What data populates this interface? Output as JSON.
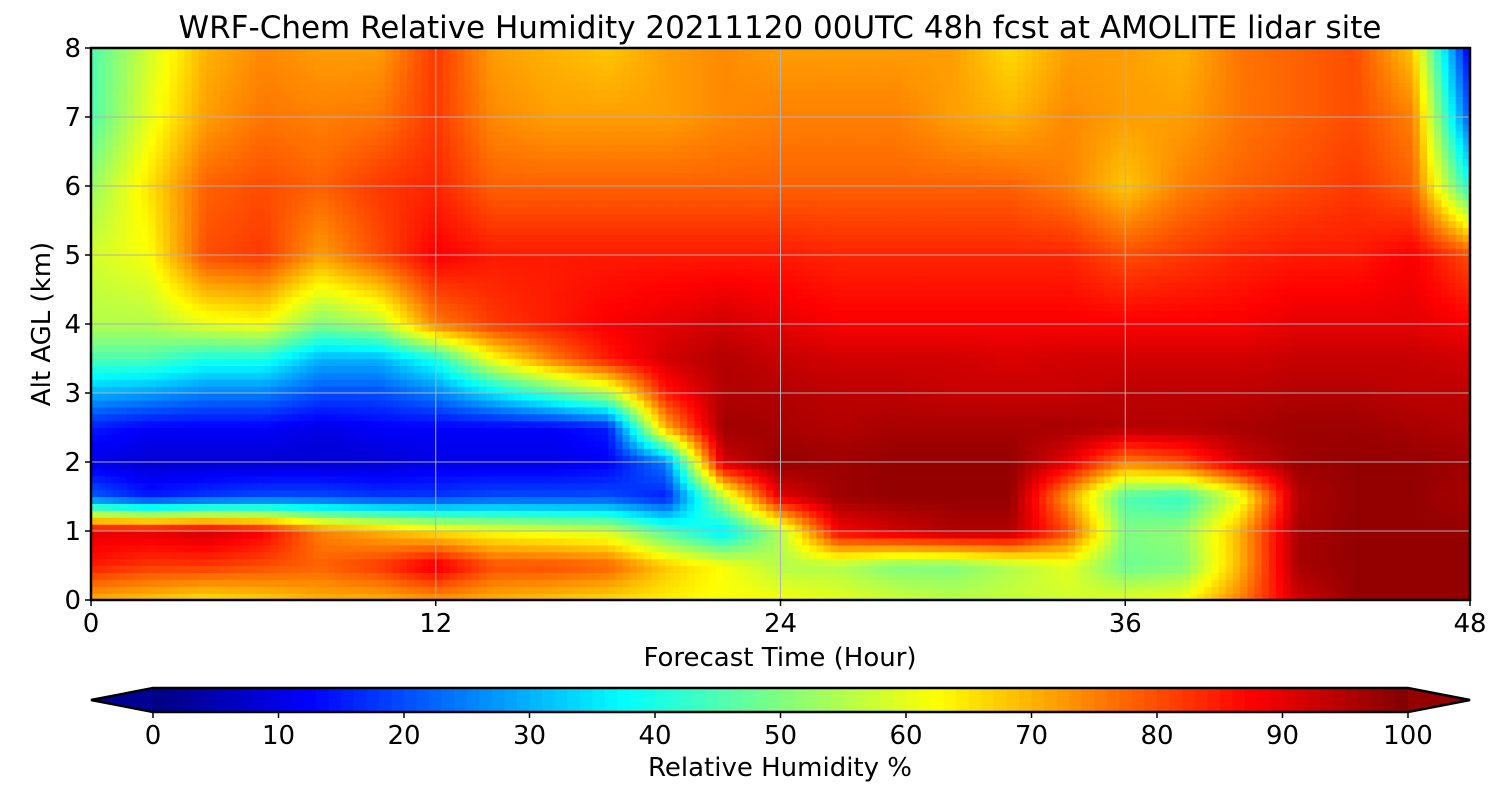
{
  "chart_data": {
    "type": "heatmap",
    "title": "WRF-Chem Relative Humidity 20211120 00UTC 48h fcst at AMOLITE lidar site",
    "xlabel": "Forecast Time (Hour)",
    "ylabel": "Alt AGL (km)",
    "xlim": [
      0,
      48
    ],
    "ylim": [
      0,
      8
    ],
    "x_ticks": [
      0,
      12,
      24,
      36,
      48
    ],
    "y_ticks": [
      0,
      1,
      2,
      3,
      4,
      5,
      6,
      7,
      8
    ],
    "grid": true,
    "colorbar": {
      "label": "Relative Humidity %",
      "range": [
        0,
        100
      ],
      "ticks": [
        0,
        10,
        20,
        30,
        40,
        50,
        60,
        70,
        80,
        90,
        100
      ],
      "colormap": "jet",
      "extend": "both",
      "orientation": "horizontal",
      "placement": "bottom"
    },
    "x": [
      0,
      2,
      4,
      6,
      8,
      10,
      12,
      14,
      16,
      18,
      20,
      22,
      24,
      26,
      28,
      30,
      32,
      34,
      36,
      38,
      40,
      42,
      44,
      46,
      48
    ],
    "y": [
      0,
      0.5,
      1,
      1.5,
      2,
      2.5,
      3,
      3.5,
      4,
      5,
      6,
      7,
      8
    ],
    "z": [
      [
        70,
        68,
        65,
        67,
        70,
        70,
        72,
        70,
        68,
        66,
        64,
        62,
        62,
        60,
        58,
        56,
        57,
        58,
        60,
        62,
        75,
        92,
        98,
        98,
        98
      ],
      [
        85,
        82,
        82,
        80,
        78,
        82,
        90,
        80,
        80,
        78,
        68,
        62,
        55,
        55,
        50,
        50,
        55,
        60,
        48,
        50,
        70,
        96,
        98,
        98,
        98
      ],
      [
        90,
        90,
        92,
        88,
        75,
        70,
        65,
        62,
        60,
        58,
        45,
        35,
        55,
        88,
        92,
        95,
        95,
        80,
        50,
        52,
        70,
        96,
        98,
        98,
        98
      ],
      [
        22,
        15,
        18,
        20,
        20,
        18,
        18,
        20,
        20,
        20,
        15,
        55,
        90,
        97,
        98,
        98,
        98,
        72,
        45,
        42,
        60,
        95,
        98,
        98,
        96
      ],
      [
        10,
        8,
        8,
        8,
        8,
        8,
        10,
        10,
        10,
        12,
        25,
        92,
        98,
        97,
        98,
        98,
        98,
        90,
        75,
        80,
        92,
        97,
        98,
        98,
        97
      ],
      [
        15,
        12,
        12,
        12,
        10,
        12,
        12,
        12,
        12,
        15,
        70,
        97,
        96,
        95,
        96,
        96,
        96,
        96,
        95,
        95,
        96,
        97,
        97,
        96,
        95
      ],
      [
        30,
        28,
        25,
        25,
        20,
        20,
        25,
        35,
        45,
        55,
        85,
        95,
        95,
        94,
        94,
        93,
        93,
        93,
        94,
        94,
        94,
        95,
        95,
        94,
        94
      ],
      [
        45,
        45,
        40,
        40,
        30,
        30,
        40,
        62,
        75,
        85,
        92,
        95,
        93,
        92,
        92,
        92,
        91,
        92,
        92,
        92,
        92,
        93,
        93,
        93,
        92
      ],
      [
        55,
        55,
        60,
        62,
        50,
        55,
        75,
        82,
        85,
        88,
        90,
        92,
        90,
        88,
        88,
        88,
        88,
        88,
        88,
        88,
        88,
        90,
        90,
        90,
        88
      ],
      [
        58,
        62,
        80,
        82,
        72,
        80,
        88,
        85,
        85,
        85,
        85,
        85,
        85,
        84,
        84,
        84,
        84,
        84,
        80,
        82,
        84,
        85,
        85,
        88,
        80
      ],
      [
        52,
        65,
        78,
        80,
        78,
        82,
        84,
        78,
        78,
        78,
        78,
        78,
        78,
        78,
        78,
        78,
        78,
        75,
        68,
        75,
        78,
        80,
        82,
        78,
        40
      ],
      [
        45,
        60,
        72,
        76,
        75,
        76,
        82,
        74,
        72,
        72,
        72,
        74,
        75,
        75,
        75,
        72,
        70,
        74,
        72,
        72,
        76,
        78,
        80,
        75,
        20
      ],
      [
        45,
        58,
        70,
        74,
        72,
        72,
        82,
        72,
        70,
        68,
        72,
        74,
        72,
        72,
        72,
        72,
        66,
        72,
        72,
        70,
        76,
        78,
        80,
        68,
        10
      ]
    ]
  }
}
